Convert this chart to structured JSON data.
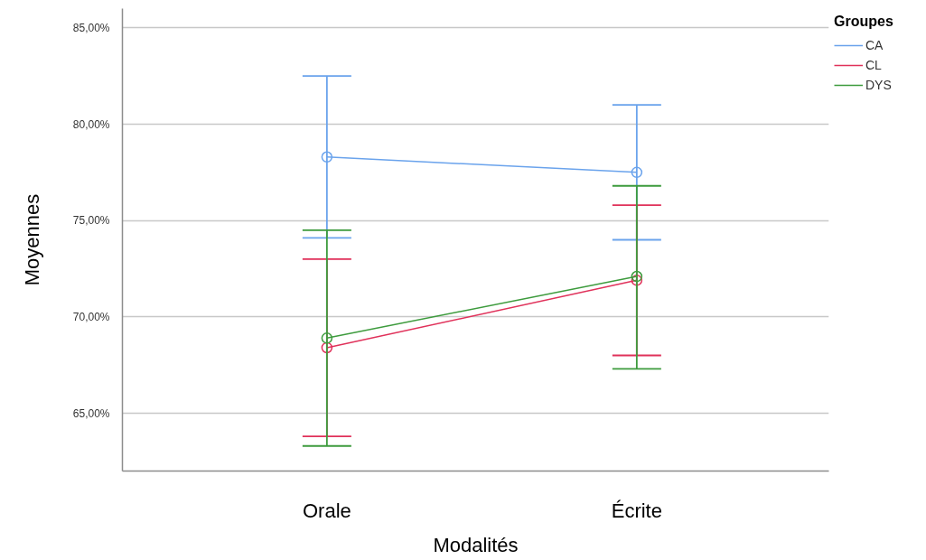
{
  "chart_data": {
    "type": "line",
    "categories": [
      "Orale",
      "Écrite"
    ],
    "xlabel": "Modalités",
    "ylabel": "Moyennes",
    "legend_title": "Groupes",
    "series": [
      {
        "name": "CA",
        "color": "#6aa3ec",
        "values": [
          78.3,
          77.5
        ],
        "errors": [
          [
            74.1,
            82.5
          ],
          [
            74.0,
            81.0
          ]
        ]
      },
      {
        "name": "CL",
        "color": "#e0315a",
        "values": [
          68.4,
          71.9
        ],
        "errors": [
          [
            63.8,
            73.0
          ],
          [
            68.0,
            75.8
          ]
        ]
      },
      {
        "name": "DYS",
        "color": "#3d9b3d",
        "values": [
          68.9,
          72.1
        ],
        "errors": [
          [
            63.3,
            74.5
          ],
          [
            67.3,
            76.8
          ]
        ]
      }
    ],
    "ylim": [
      62,
      86
    ],
    "yticks": [
      {
        "value": 65,
        "label": "65,00%"
      },
      {
        "value": 70,
        "label": "70,00%"
      },
      {
        "value": 75,
        "label": "75,00%"
      },
      {
        "value": 80,
        "label": "80,00%"
      },
      {
        "value": 85,
        "label": "85,00%"
      }
    ],
    "grid": "y",
    "legend": "top right",
    "marker": "circle",
    "line_style": "solid"
  }
}
